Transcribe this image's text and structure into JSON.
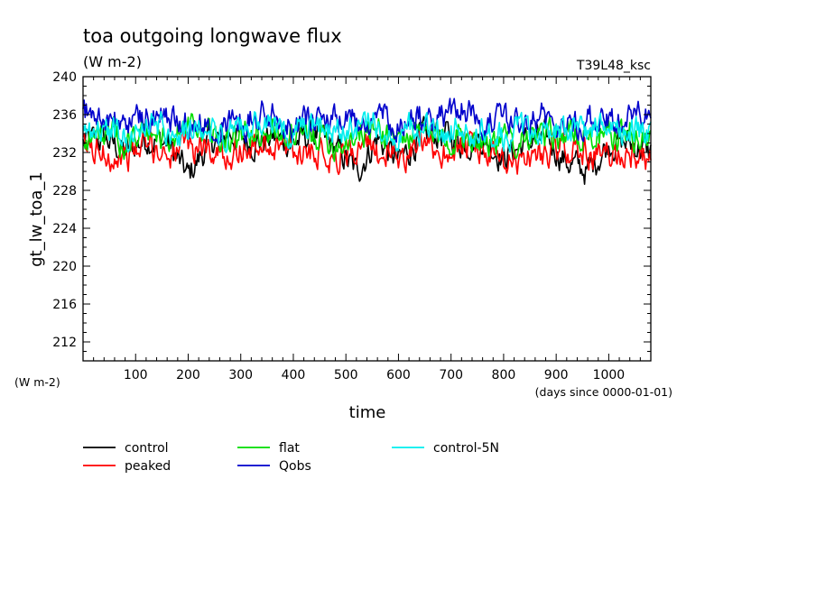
{
  "chart_data": {
    "type": "line",
    "title": "toa outgoing longwave flux",
    "subtitle": "(W m-2)",
    "model_tag": "T39L48_ksc",
    "ylabel": "gt_lw_toa_1",
    "y_units": "(W m-2)",
    "xlabel": "time",
    "x_units": "(days since 0000-01-01)",
    "xlim": [
      0,
      1080
    ],
    "ylim": [
      210,
      240
    ],
    "y_ticks": [
      212,
      216,
      220,
      224,
      228,
      232,
      236,
      240
    ],
    "x_ticks": [
      100,
      200,
      300,
      400,
      500,
      600,
      700,
      800,
      900,
      1000
    ],
    "legend_position": "bottom",
    "series": [
      {
        "name": "control",
        "color": "#000000",
        "x": [
          0,
          40,
          80,
          120,
          160,
          200,
          240,
          280,
          320,
          360,
          400,
          440,
          480,
          520,
          560,
          600,
          640,
          680,
          720,
          760,
          800,
          840,
          880,
          920,
          960,
          1000,
          1040,
          1080
        ],
        "values": [
          233.0,
          233.5,
          232.0,
          233.5,
          233.0,
          229.5,
          233.0,
          234.0,
          233.0,
          233.5,
          233.0,
          234.0,
          232.5,
          230.0,
          233.5,
          231.0,
          233.5,
          234.0,
          233.0,
          233.5,
          231.5,
          233.0,
          233.5,
          231.0,
          230.0,
          233.0,
          233.0,
          232.0
        ]
      },
      {
        "name": "peaked",
        "color": "#ff0000",
        "x": [
          0,
          40,
          80,
          120,
          160,
          200,
          240,
          280,
          320,
          360,
          400,
          440,
          480,
          520,
          560,
          600,
          640,
          680,
          720,
          760,
          800,
          840,
          880,
          920,
          960,
          1000,
          1040,
          1080
        ],
        "values": [
          232.5,
          232.0,
          231.5,
          232.5,
          232.0,
          232.5,
          232.5,
          232.0,
          232.5,
          233.0,
          232.0,
          232.5,
          231.5,
          232.5,
          232.0,
          231.5,
          232.5,
          232.0,
          232.5,
          232.0,
          230.5,
          231.5,
          232.0,
          232.5,
          232.0,
          231.5,
          232.0,
          231.0
        ]
      },
      {
        "name": "flat",
        "color": "#00dd00",
        "x": [
          0,
          40,
          80,
          120,
          160,
          200,
          240,
          280,
          320,
          360,
          400,
          440,
          480,
          520,
          560,
          600,
          640,
          680,
          720,
          760,
          800,
          840,
          880,
          920,
          960,
          1000,
          1040,
          1080
        ],
        "values": [
          233.5,
          234.0,
          233.0,
          234.0,
          233.5,
          234.5,
          234.0,
          233.5,
          234.0,
          234.5,
          233.5,
          234.0,
          233.0,
          234.0,
          234.5,
          233.5,
          234.0,
          233.5,
          234.0,
          233.5,
          233.0,
          234.0,
          233.5,
          234.0,
          234.0,
          233.5,
          234.0,
          233.0
        ]
      },
      {
        "name": "Qobs",
        "color": "#0000cc",
        "x": [
          0,
          40,
          80,
          120,
          160,
          200,
          240,
          280,
          320,
          360,
          400,
          440,
          480,
          520,
          560,
          600,
          640,
          680,
          720,
          760,
          800,
          840,
          880,
          920,
          960,
          1000,
          1040,
          1080
        ],
        "values": [
          236.5,
          235.5,
          235.0,
          236.0,
          235.5,
          235.0,
          235.5,
          235.0,
          235.5,
          236.0,
          235.0,
          235.5,
          235.0,
          235.5,
          236.0,
          235.0,
          235.5,
          235.5,
          237.0,
          235.5,
          235.0,
          235.5,
          236.0,
          235.0,
          235.5,
          235.0,
          236.0,
          235.5
        ]
      },
      {
        "name": "control-5N",
        "color": "#00eeee",
        "x": [
          0,
          40,
          80,
          120,
          160,
          200,
          240,
          280,
          320,
          360,
          400,
          440,
          480,
          520,
          560,
          600,
          640,
          680,
          720,
          760,
          800,
          840,
          880,
          920,
          960,
          1000,
          1040,
          1080
        ],
        "values": [
          234.0,
          234.5,
          233.5,
          235.0,
          234.5,
          234.0,
          234.5,
          234.0,
          235.0,
          234.5,
          234.0,
          234.5,
          234.0,
          234.5,
          235.0,
          234.0,
          234.5,
          234.0,
          234.5,
          234.0,
          233.5,
          234.5,
          234.0,
          234.5,
          234.5,
          234.0,
          234.5,
          234.0
        ]
      }
    ]
  }
}
